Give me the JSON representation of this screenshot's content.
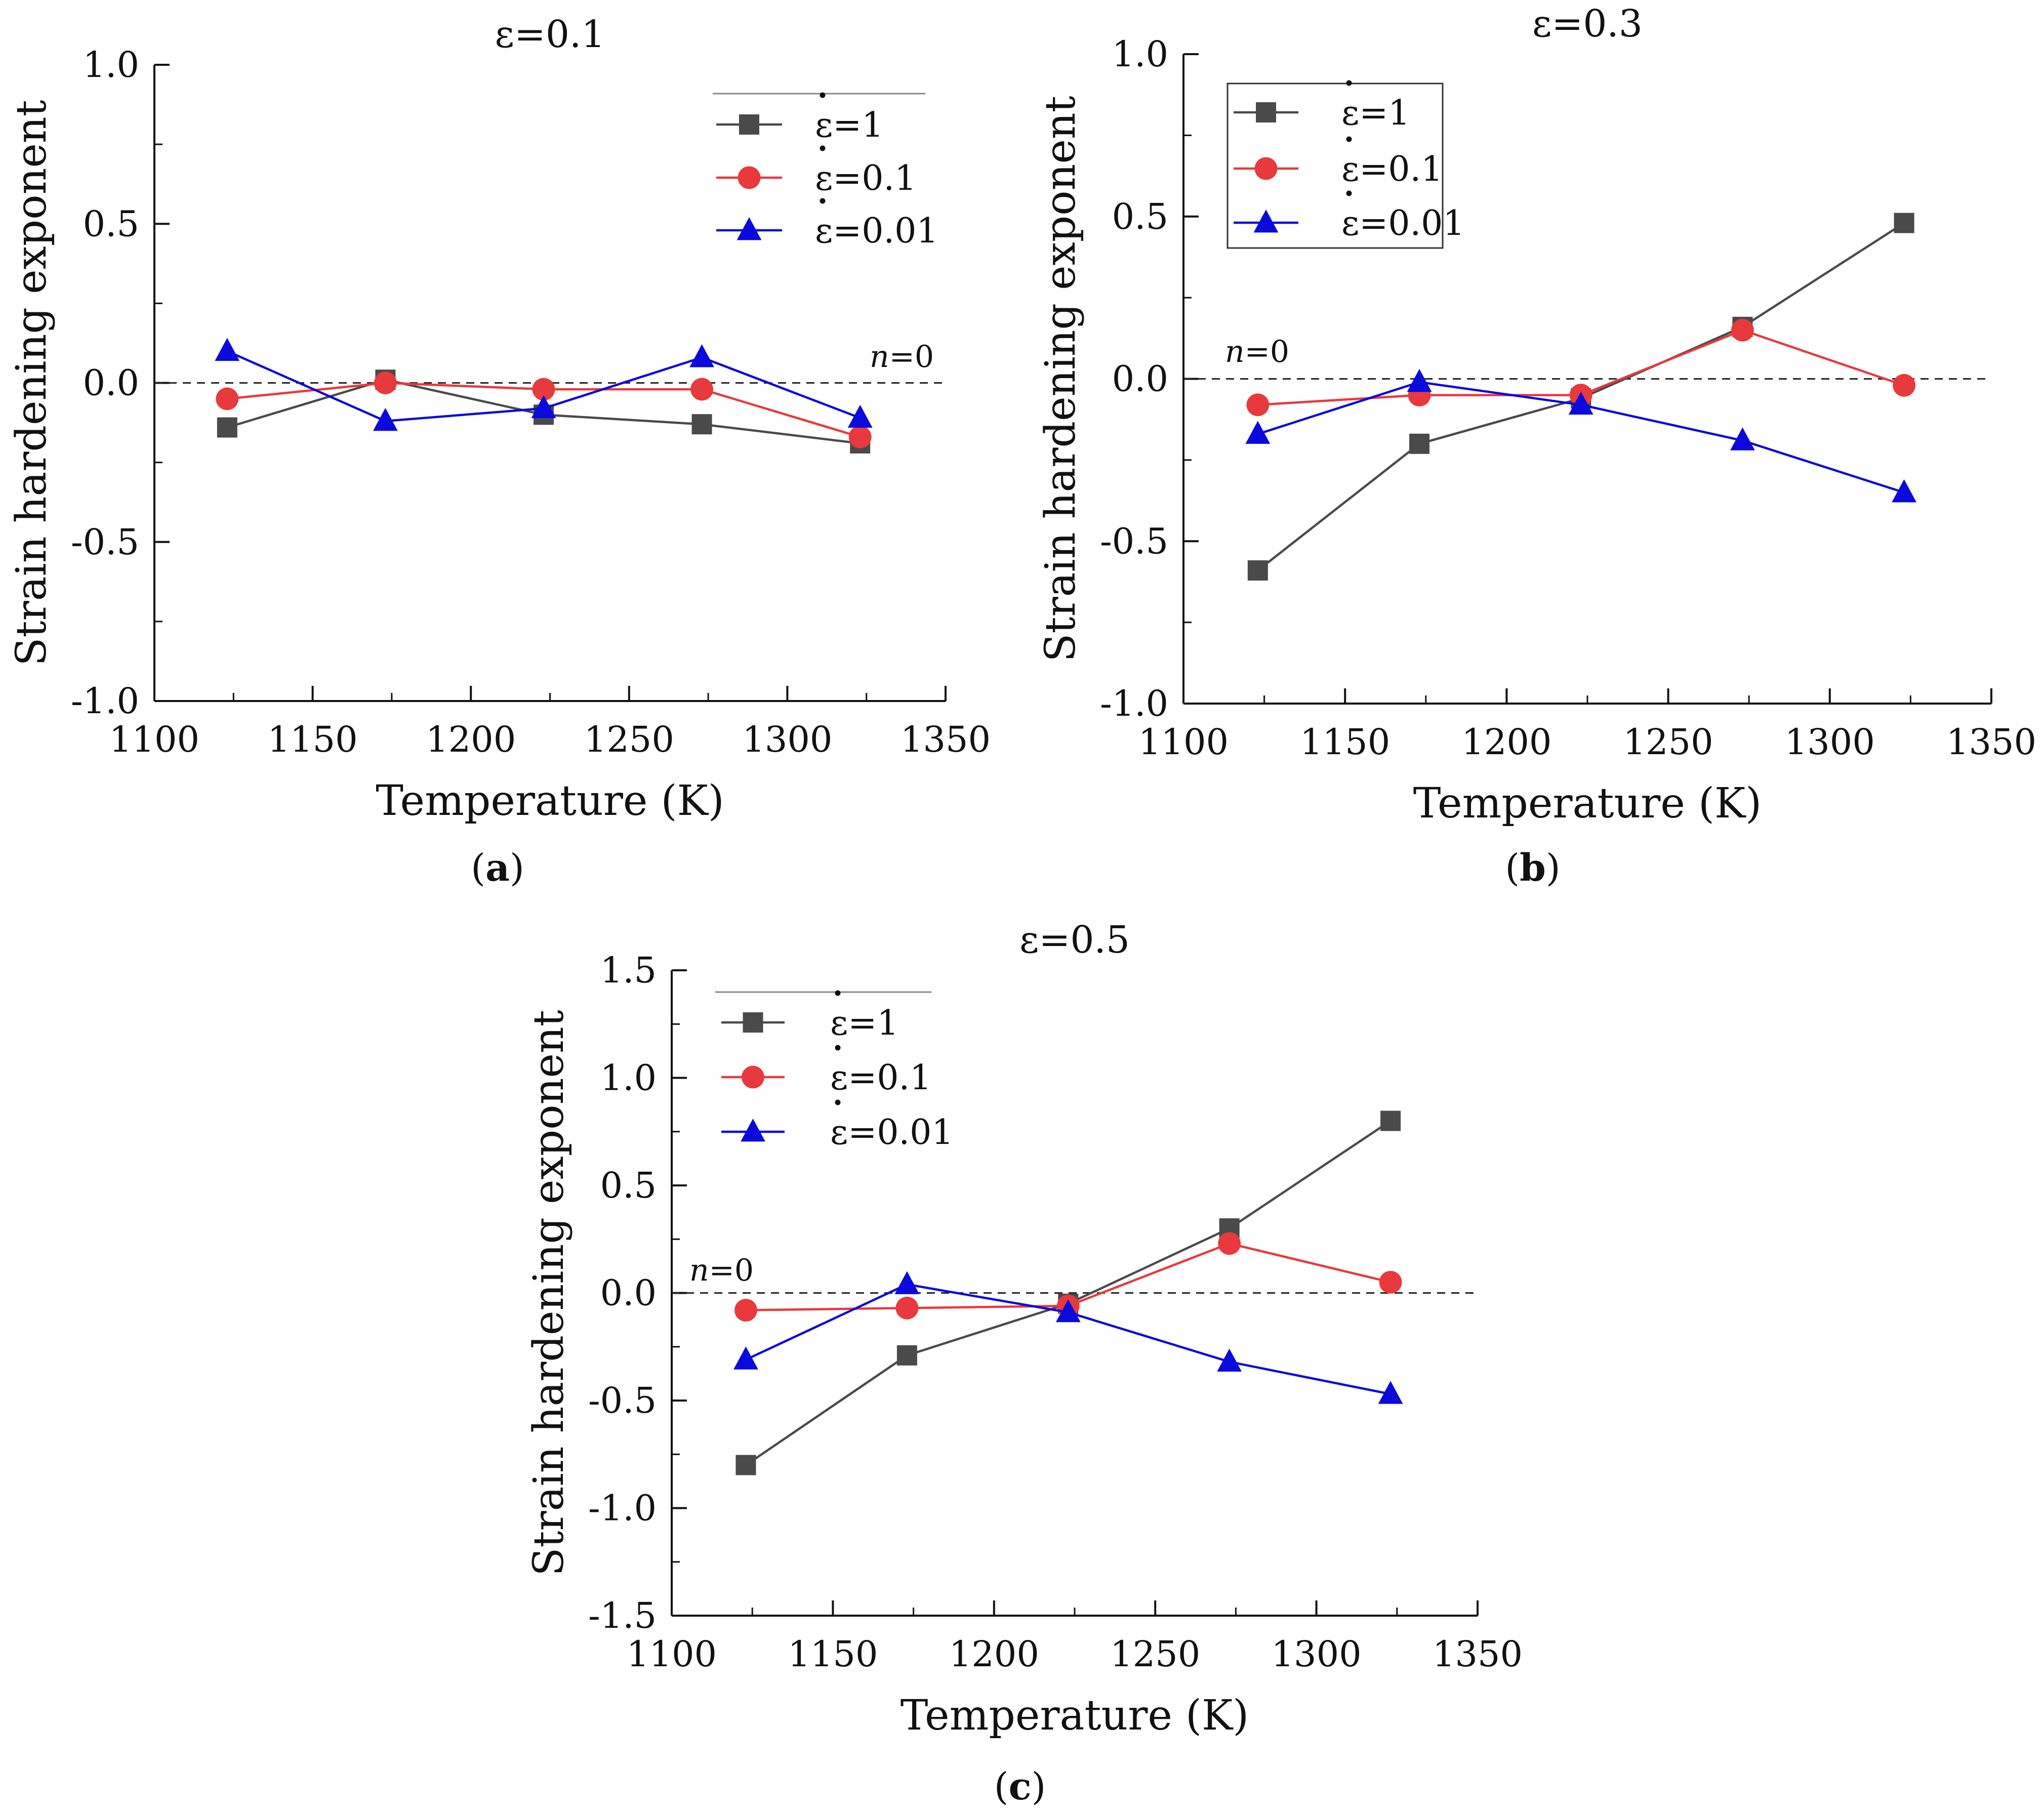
{
  "chart_data": [
    {
      "type": "line",
      "panel_label": "a",
      "title": "ε=0.1",
      "xlabel": "Temperature (K)",
      "ylabel": "Strain hardening exponent",
      "x": [
        1123,
        1173,
        1223,
        1273,
        1323
      ],
      "xlim": [
        1100,
        1350
      ],
      "xticks": [
        1100,
        1150,
        1200,
        1250,
        1300,
        1350
      ],
      "xtick_labels": [
        "1100",
        "1150",
        "1200",
        "1250",
        "1300",
        "1350"
      ],
      "ylim": [
        -1.0,
        1.0
      ],
      "yticks": [
        -1.0,
        -0.5,
        0.0,
        0.5,
        1.0
      ],
      "ytick_labels": [
        "-1.0",
        "-0.5",
        "0.0",
        "0.5",
        "1.0"
      ],
      "reference_line": {
        "y": 0,
        "label_italic": "n",
        "label_suffix": "=0",
        "label_position": "right"
      },
      "legend_position": "top-right",
      "legend_frame": "top-line",
      "series": [
        {
          "name": "ε=1",
          "rate_symbol": "ε",
          "rate_value": "=1",
          "marker": "square",
          "color": "#4a4a4a",
          "values": [
            -0.14,
            0.01,
            -0.1,
            -0.13,
            -0.19
          ]
        },
        {
          "name": "ε=0.1",
          "rate_symbol": "ε",
          "rate_value": "=0.1",
          "marker": "circle",
          "color": "#e8393c",
          "values": [
            -0.05,
            0.0,
            -0.02,
            -0.02,
            -0.17
          ]
        },
        {
          "name": "ε=0.01",
          "rate_symbol": "ε",
          "rate_value": "=0.01",
          "marker": "triangle",
          "color": "#0a0adc",
          "values": [
            0.1,
            -0.12,
            -0.08,
            0.08,
            -0.11
          ]
        }
      ]
    },
    {
      "type": "line",
      "panel_label": "b",
      "title": "ε=0.3",
      "xlabel": "Temperature (K)",
      "ylabel": "Strain hardening exponent",
      "x": [
        1123,
        1173,
        1223,
        1273,
        1323
      ],
      "xlim": [
        1100,
        1350
      ],
      "xticks": [
        1100,
        1150,
        1200,
        1250,
        1300,
        1350
      ],
      "xtick_labels": [
        "1100",
        "1150",
        "1200",
        "1250",
        "1300",
        "1350"
      ],
      "ylim": [
        -1.0,
        1.0
      ],
      "yticks": [
        -1.0,
        -0.5,
        0.0,
        0.5,
        1.0
      ],
      "ytick_labels": [
        "-1.0",
        "-0.5",
        "0.0",
        "0.5",
        "1.0"
      ],
      "reference_line": {
        "y": 0,
        "label_italic": "n",
        "label_suffix": "=0",
        "label_position": "left"
      },
      "legend_position": "top-left",
      "legend_frame": "box",
      "series": [
        {
          "name": "ε=1",
          "rate_symbol": "ε",
          "rate_value": "=1",
          "marker": "square",
          "color": "#4a4a4a",
          "values": [
            -0.59,
            -0.2,
            -0.06,
            0.16,
            0.48
          ]
        },
        {
          "name": "ε=0.1",
          "rate_symbol": "ε",
          "rate_value": "=0.1",
          "marker": "circle",
          "color": "#e8393c",
          "values": [
            -0.08,
            -0.05,
            -0.05,
            0.15,
            -0.02
          ]
        },
        {
          "name": "ε=0.01",
          "rate_symbol": "ε",
          "rate_value": "=0.01",
          "marker": "triangle",
          "color": "#0a0adc",
          "values": [
            -0.17,
            -0.01,
            -0.08,
            -0.19,
            -0.35
          ]
        }
      ]
    },
    {
      "type": "line",
      "panel_label": "c",
      "title": "ε=0.5",
      "xlabel": "Temperature (K)",
      "ylabel": "Strain hardening exponent",
      "x": [
        1123,
        1173,
        1223,
        1273,
        1323
      ],
      "xlim": [
        1100,
        1350
      ],
      "xticks": [
        1100,
        1150,
        1200,
        1250,
        1300,
        1350
      ],
      "xtick_labels": [
        "1100",
        "1150",
        "1200",
        "1250",
        "1300",
        "1350"
      ],
      "ylim": [
        -1.5,
        1.5
      ],
      "yticks": [
        -1.5,
        -1.0,
        -0.5,
        0.0,
        0.5,
        1.0,
        1.5
      ],
      "ytick_labels": [
        "-1.5",
        "-1.0",
        "-0.5",
        "0.0",
        "0.5",
        "1.0",
        "1.5"
      ],
      "reference_line": {
        "y": 0,
        "label_italic": "n",
        "label_suffix": "=0",
        "label_position": "left"
      },
      "legend_position": "top-left",
      "legend_frame": "top-line",
      "series": [
        {
          "name": "ε=1",
          "rate_symbol": "ε",
          "rate_value": "=1",
          "marker": "square",
          "color": "#4a4a4a",
          "values": [
            -0.8,
            -0.29,
            -0.05,
            0.3,
            0.8
          ]
        },
        {
          "name": "ε=0.1",
          "rate_symbol": "ε",
          "rate_value": "=0.1",
          "marker": "circle",
          "color": "#e8393c",
          "values": [
            -0.08,
            -0.07,
            -0.06,
            0.23,
            0.05
          ]
        },
        {
          "name": "ε=0.01",
          "rate_symbol": "ε",
          "rate_value": "=0.01",
          "marker": "triangle",
          "color": "#0a0adc",
          "values": [
            -0.31,
            0.04,
            -0.09,
            -0.32,
            -0.47
          ]
        }
      ]
    }
  ]
}
